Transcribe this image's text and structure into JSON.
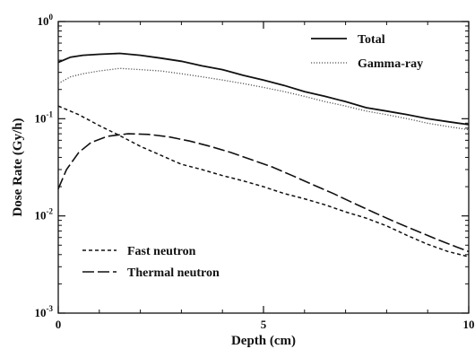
{
  "chart_data": {
    "type": "line",
    "title": "",
    "xlabel": "Depth  (cm)",
    "ylabel": "Dose Rate (Gy/h)",
    "xlim": [
      0,
      10
    ],
    "ylim": [
      0.001,
      1
    ],
    "yscale": "log",
    "grid": false,
    "x_ticks": [
      {
        "value": 0,
        "label": "0"
      },
      {
        "value": 5,
        "label": "5"
      },
      {
        "value": 10,
        "label": "10"
      }
    ],
    "y_ticks": [
      {
        "value": 0.001,
        "base": "10",
        "exp": "-3"
      },
      {
        "value": 0.01,
        "base": "10",
        "exp": "-2"
      },
      {
        "value": 0.1,
        "base": "10",
        "exp": "-1"
      },
      {
        "value": 1,
        "base": "10",
        "exp": "0"
      }
    ],
    "legend_top": {
      "placement": "top-right",
      "entries": [
        "Total",
        "Gamma-ray"
      ]
    },
    "legend_bottom": {
      "placement": "bottom-left",
      "entries": [
        "Fast neutron",
        "Thermal neutron"
      ]
    },
    "series": [
      {
        "name": "Total",
        "color": "#111111",
        "dash": "solid",
        "x": [
          0,
          0.3,
          0.6,
          1.0,
          1.5,
          2.0,
          2.5,
          3.0,
          3.5,
          4.0,
          4.5,
          5.0,
          5.5,
          6.0,
          6.5,
          7.0,
          7.5,
          8.0,
          8.5,
          9.0,
          9.5,
          10.0
        ],
        "y": [
          0.38,
          0.43,
          0.45,
          0.46,
          0.47,
          0.45,
          0.42,
          0.39,
          0.35,
          0.32,
          0.28,
          0.25,
          0.22,
          0.19,
          0.17,
          0.15,
          0.13,
          0.12,
          0.11,
          0.1,
          0.093,
          0.087
        ]
      },
      {
        "name": "Gamma-ray",
        "color": "#555555",
        "dash": "dotted",
        "x": [
          0,
          0.3,
          0.6,
          1.0,
          1.5,
          2.0,
          2.5,
          3.0,
          3.5,
          4.0,
          4.5,
          5.0,
          5.5,
          6.0,
          6.5,
          7.0,
          7.5,
          8.0,
          8.5,
          9.0,
          9.5,
          10.0
        ],
        "y": [
          0.23,
          0.27,
          0.29,
          0.31,
          0.33,
          0.32,
          0.31,
          0.29,
          0.27,
          0.25,
          0.23,
          0.21,
          0.19,
          0.17,
          0.15,
          0.135,
          0.12,
          0.11,
          0.1,
          0.09,
          0.083,
          0.077
        ]
      },
      {
        "name": "Fast neutron",
        "color": "#111111",
        "dash": "short",
        "x": [
          0,
          0.5,
          1.0,
          1.5,
          2.0,
          2.5,
          3.0,
          3.5,
          4.0,
          4.5,
          5.0,
          5.5,
          6.0,
          6.5,
          7.0,
          7.5,
          8.0,
          8.5,
          9.0,
          9.5,
          10.0
        ],
        "y": [
          0.135,
          0.11,
          0.085,
          0.067,
          0.052,
          0.042,
          0.034,
          0.03,
          0.026,
          0.023,
          0.02,
          0.017,
          0.015,
          0.013,
          0.011,
          0.0095,
          0.0079,
          0.0063,
          0.0051,
          0.0043,
          0.0038
        ]
      },
      {
        "name": "Thermal neutron",
        "color": "#111111",
        "dash": "long",
        "x": [
          0,
          0.2,
          0.5,
          0.8,
          1.2,
          1.7,
          2.2,
          2.7,
          3.2,
          3.7,
          4.2,
          4.7,
          5.2,
          5.7,
          6.2,
          6.7,
          7.2,
          7.7,
          8.2,
          8.7,
          9.2,
          9.7,
          10.0
        ],
        "y": [
          0.019,
          0.03,
          0.045,
          0.057,
          0.066,
          0.07,
          0.069,
          0.065,
          0.059,
          0.052,
          0.045,
          0.038,
          0.032,
          0.026,
          0.021,
          0.017,
          0.0135,
          0.0108,
          0.0087,
          0.0071,
          0.0058,
          0.0048,
          0.0043
        ]
      }
    ]
  }
}
